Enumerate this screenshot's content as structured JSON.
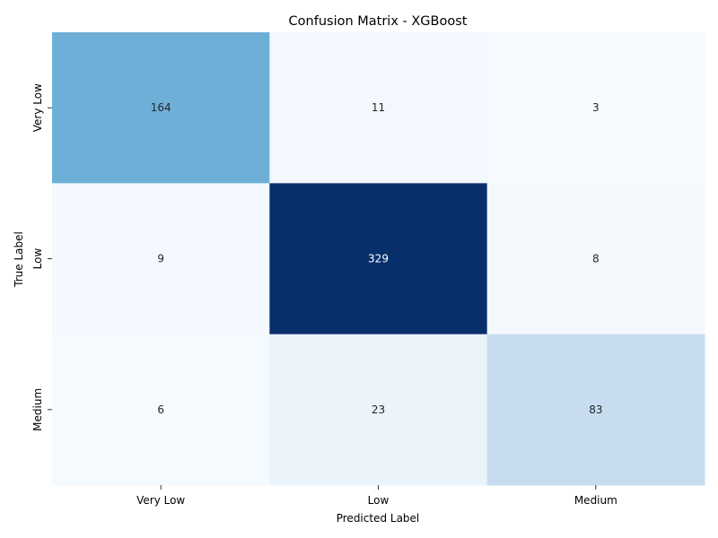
{
  "chart_data": {
    "type": "heatmap",
    "title": "Confusion Matrix - XGBoost",
    "xlabel": "Predicted Label",
    "ylabel": "True Label",
    "x_categories": [
      "Very Low",
      "Low",
      "Medium"
    ],
    "y_categories": [
      "Very Low",
      "Low",
      "Medium"
    ],
    "values": [
      [
        164,
        11,
        3
      ],
      [
        9,
        329,
        8
      ],
      [
        6,
        23,
        83
      ]
    ],
    "colormap": "Blues",
    "value_range": [
      3,
      329
    ],
    "colorbar": false,
    "grid": false
  }
}
